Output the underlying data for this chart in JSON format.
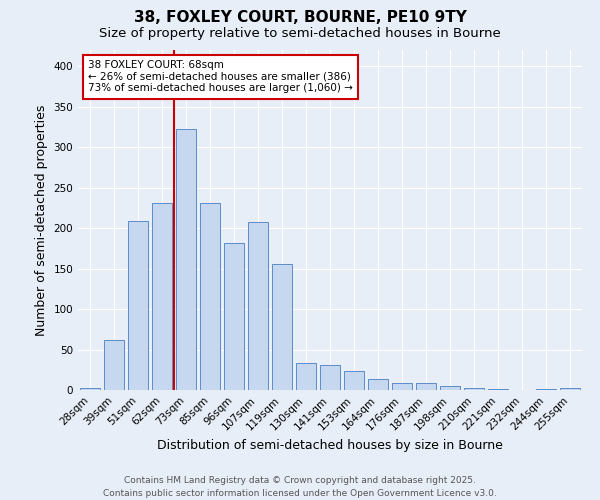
{
  "title": "38, FOXLEY COURT, BOURNE, PE10 9TY",
  "subtitle": "Size of property relative to semi-detached houses in Bourne",
  "xlabel": "Distribution of semi-detached houses by size in Bourne",
  "ylabel": "Number of semi-detached properties",
  "categories": [
    "28sqm",
    "39sqm",
    "51sqm",
    "62sqm",
    "73sqm",
    "85sqm",
    "96sqm",
    "107sqm",
    "119sqm",
    "130sqm",
    "141sqm",
    "153sqm",
    "164sqm",
    "176sqm",
    "187sqm",
    "198sqm",
    "210sqm",
    "221sqm",
    "232sqm",
    "244sqm",
    "255sqm"
  ],
  "values": [
    3,
    62,
    209,
    231,
    322,
    231,
    181,
    207,
    156,
    33,
    31,
    24,
    13,
    9,
    9,
    5,
    3,
    1,
    0,
    1,
    3
  ],
  "bar_color": "#c5d8f0",
  "bar_edge_color": "#5b8dc8",
  "bg_color": "#e8eef7",
  "grid_color": "#ffffff",
  "vline_color": "#cc0000",
  "annotation_text": "38 FOXLEY COURT: 68sqm\n← 26% of semi-detached houses are smaller (386)\n73% of semi-detached houses are larger (1,060) →",
  "annotation_box_facecolor": "#ffffff",
  "annotation_box_edgecolor": "#cc0000",
  "ylim": [
    0,
    420
  ],
  "yticks": [
    0,
    50,
    100,
    150,
    200,
    250,
    300,
    350,
    400
  ],
  "footer": "Contains HM Land Registry data © Crown copyright and database right 2025.\nContains public sector information licensed under the Open Government Licence v3.0.",
  "title_fontsize": 11,
  "subtitle_fontsize": 9.5,
  "axis_label_fontsize": 9,
  "tick_fontsize": 7.5,
  "annotation_fontsize": 7.5,
  "footer_fontsize": 6.5
}
